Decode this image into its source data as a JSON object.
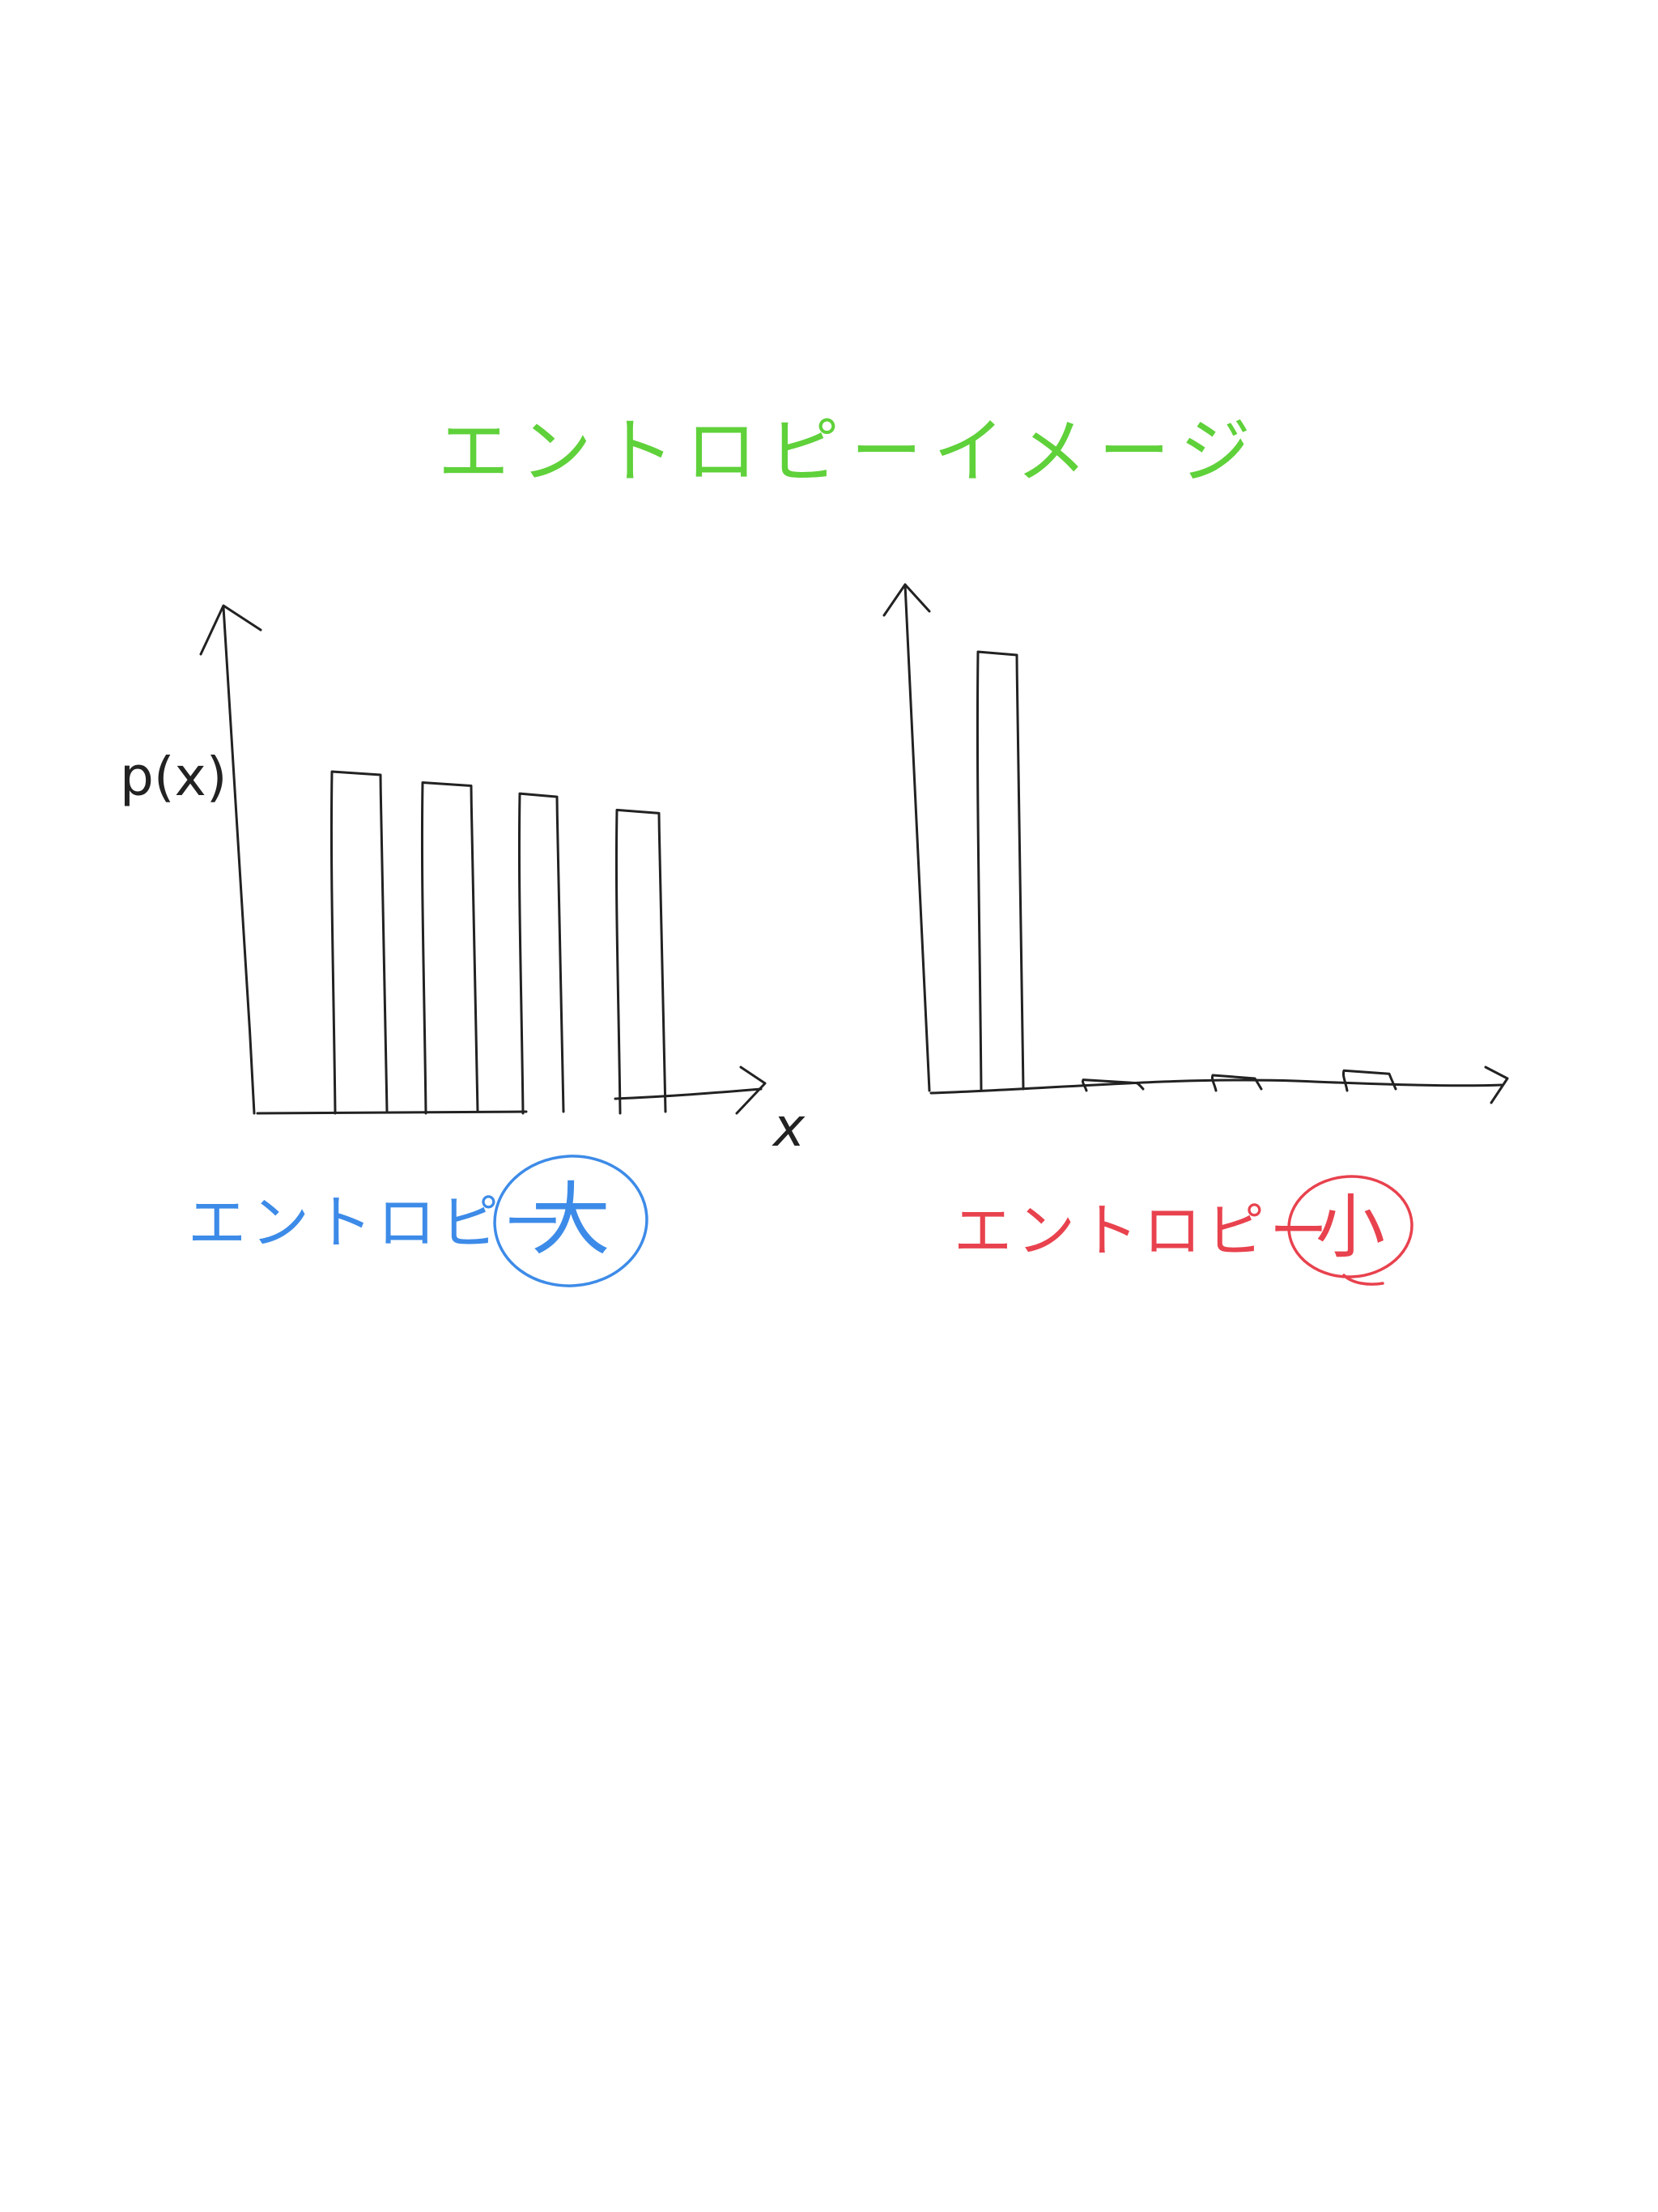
{
  "title": {
    "text": "エントロピーイメージ",
    "color": "#5fd13a"
  },
  "left_chart": {
    "y_axis_label": "p(x)",
    "x_axis_label": "x",
    "caption_text": "エントロピー",
    "caption_mark": "大",
    "caption_color": "#3d8be8",
    "ink_color": "#222222",
    "chart_data": {
      "type": "bar",
      "values": [
        0.62,
        0.6,
        0.58,
        0.55
      ],
      "ylim": [
        0,
        1
      ]
    }
  },
  "right_chart": {
    "caption_text": "エントロピー",
    "caption_mark": "小",
    "caption_color": "#e8424e",
    "ink_color": "#222222",
    "chart_data": {
      "type": "bar",
      "values": [
        0.95,
        0.02,
        0.03,
        0.04
      ],
      "ylim": [
        0,
        1
      ]
    }
  }
}
